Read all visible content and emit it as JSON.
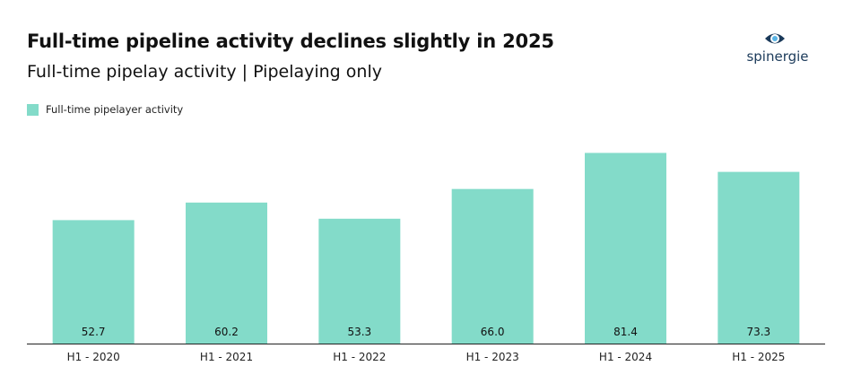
{
  "header": {
    "title": "Full-time pipeline activity declines slightly in 2025",
    "subtitle": "Full-time pipelay activity | Pipelaying only"
  },
  "logo": {
    "text": "spinergie",
    "icon": "eye-icon",
    "color": "#1b3a5a"
  },
  "colors": {
    "bar": "#83dbc9",
    "axis": "#222222"
  },
  "chart_data": {
    "type": "bar",
    "title": "Full-time pipeline activity declines slightly in 2025",
    "subtitle": "Full-time pipelay activity | Pipelaying only",
    "categories": [
      "H1 - 2020",
      "H1 - 2021",
      "H1 - 2022",
      "H1 - 2023",
      "H1 - 2024",
      "H1 - 2025"
    ],
    "series": [
      {
        "name": "Full-time pipelayer activity",
        "values": [
          52.7,
          60.2,
          53.3,
          66.0,
          81.4,
          73.3
        ],
        "labels": [
          "52.7",
          "60.2",
          "53.3",
          "66.0",
          "81.4",
          "73.3"
        ]
      }
    ],
    "xlabel": "",
    "ylabel": "",
    "ylim": [
      0,
      90
    ],
    "grid": false,
    "legend": "top-left"
  }
}
